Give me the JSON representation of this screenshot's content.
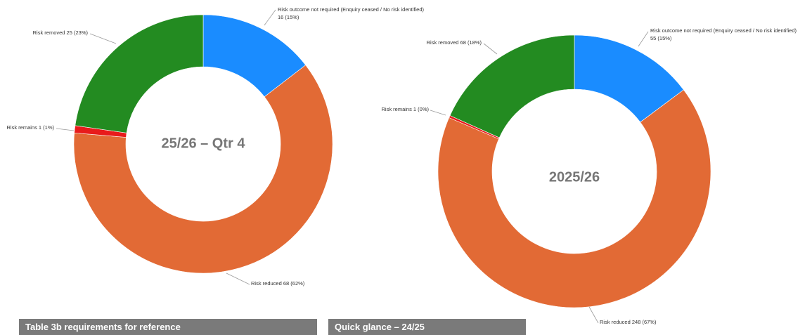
{
  "chart_data": [
    {
      "type": "pie",
      "center_label": "25/26 – Qtr 4",
      "segments": [
        {
          "name": "Risk outcome not required (Enquiry ceased / No risk identified)",
          "value": 16,
          "percent": 15,
          "label_line1": "Risk outcome not required (Enquiry ceased / No risk identified)",
          "label_line2": "16 (15%)",
          "color": "#1a8cff"
        },
        {
          "name": "Risk reduced",
          "value": 68,
          "percent": 62,
          "label_line1": "Risk reduced 68 (62%)",
          "color": "#e26a35"
        },
        {
          "name": "Risk remains",
          "value": 1,
          "percent": 1,
          "label_line1": "Risk remains 1 (1%)",
          "color": "#e81b1b"
        },
        {
          "name": "Risk removed",
          "value": 25,
          "percent": 23,
          "label_line1": "Risk removed 25 (23%)",
          "color": "#238b21"
        }
      ]
    },
    {
      "type": "pie",
      "center_label": "2025/26",
      "segments": [
        {
          "name": "Risk outcome not required (Enquiry ceased / No risk identified)",
          "value": 55,
          "percent": 15,
          "label_line1": "Risk outcome not required (Enquiry ceased / No risk identified)",
          "label_line2": "55 (15%)",
          "color": "#1a8cff"
        },
        {
          "name": "Risk reduced",
          "value": 248,
          "percent": 67,
          "label_line1": "Risk reduced 248 (67%)",
          "color": "#e26a35"
        },
        {
          "name": "Risk remains",
          "value": 1,
          "percent": 0,
          "label_line1": "Risk remains 1 (0%)",
          "color": "#e81b1b"
        },
        {
          "name": "Risk removed",
          "value": 68,
          "percent": 18,
          "label_line1": "Risk removed 68 (18%)",
          "color": "#238b21"
        }
      ]
    }
  ],
  "footer": {
    "left_label": "Table 3b requirements for reference",
    "right_label": "Quick glance – 24/25"
  }
}
